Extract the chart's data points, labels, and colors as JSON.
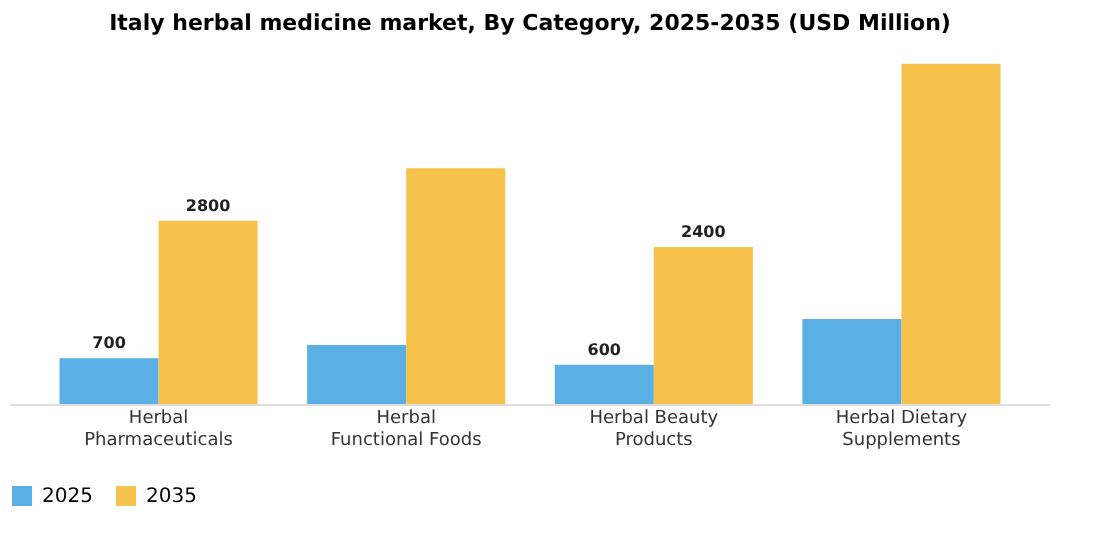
{
  "chart_data": {
    "type": "bar",
    "title": "Italy herbal medicine market, By Category, 2025-2035 (USD Million)",
    "categories": [
      "Herbal Pharmaceuticals",
      "Herbal Functional Foods",
      "Herbal Beauty Products",
      "Herbal Dietary Supplements"
    ],
    "series": [
      {
        "name": "2025",
        "color": "#5ab0e4",
        "values": [
          700,
          900,
          600,
          1300
        ],
        "value_labels": [
          "700",
          null,
          "600",
          null
        ]
      },
      {
        "name": "2035",
        "color": "#f6c24c",
        "values": [
          2800,
          3600,
          2400,
          5200
        ],
        "value_labels": [
          "2800",
          null,
          "2400",
          null
        ]
      }
    ],
    "tick_labels": "x",
    "grid": false,
    "legend": "bottom"
  }
}
